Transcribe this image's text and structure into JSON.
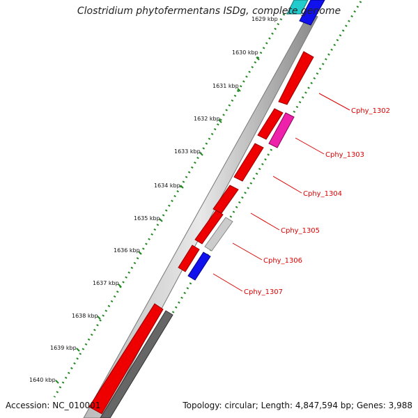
{
  "map": {
    "title": "Clostridium phytofermentans ISDg, complete genome",
    "accession_text": "Accession: NC_010001",
    "topology_text": "Topology: circular; Length: 4,847,594 bp; Genes: 3,988",
    "top_partial_label": "1629 kbp",
    "tick_labels": [
      "1630 kbp",
      "1631 kbp",
      "1632 kbp",
      "1633 kbp",
      "1634 kbp",
      "1635 kbp",
      "1636 kbp",
      "1637 kbp",
      "1638 kbp",
      "1639 kbp",
      "1640 kbp"
    ],
    "gene_labels": [
      "Cphy_1302",
      "Cphy_1303",
      "Cphy_1304",
      "Cphy_1305",
      "Cphy_1306",
      "Cphy_1307"
    ],
    "colors": {
      "red": "#ee0000",
      "magenta": "#ee22aa",
      "blue": "#1111ee",
      "light_gray": "#cccccc",
      "dark_gray": "#666666",
      "cyan": "#22cccc",
      "dot_green": "#228822",
      "backbone": "#888888",
      "label_red": "#dd0000"
    }
  }
}
